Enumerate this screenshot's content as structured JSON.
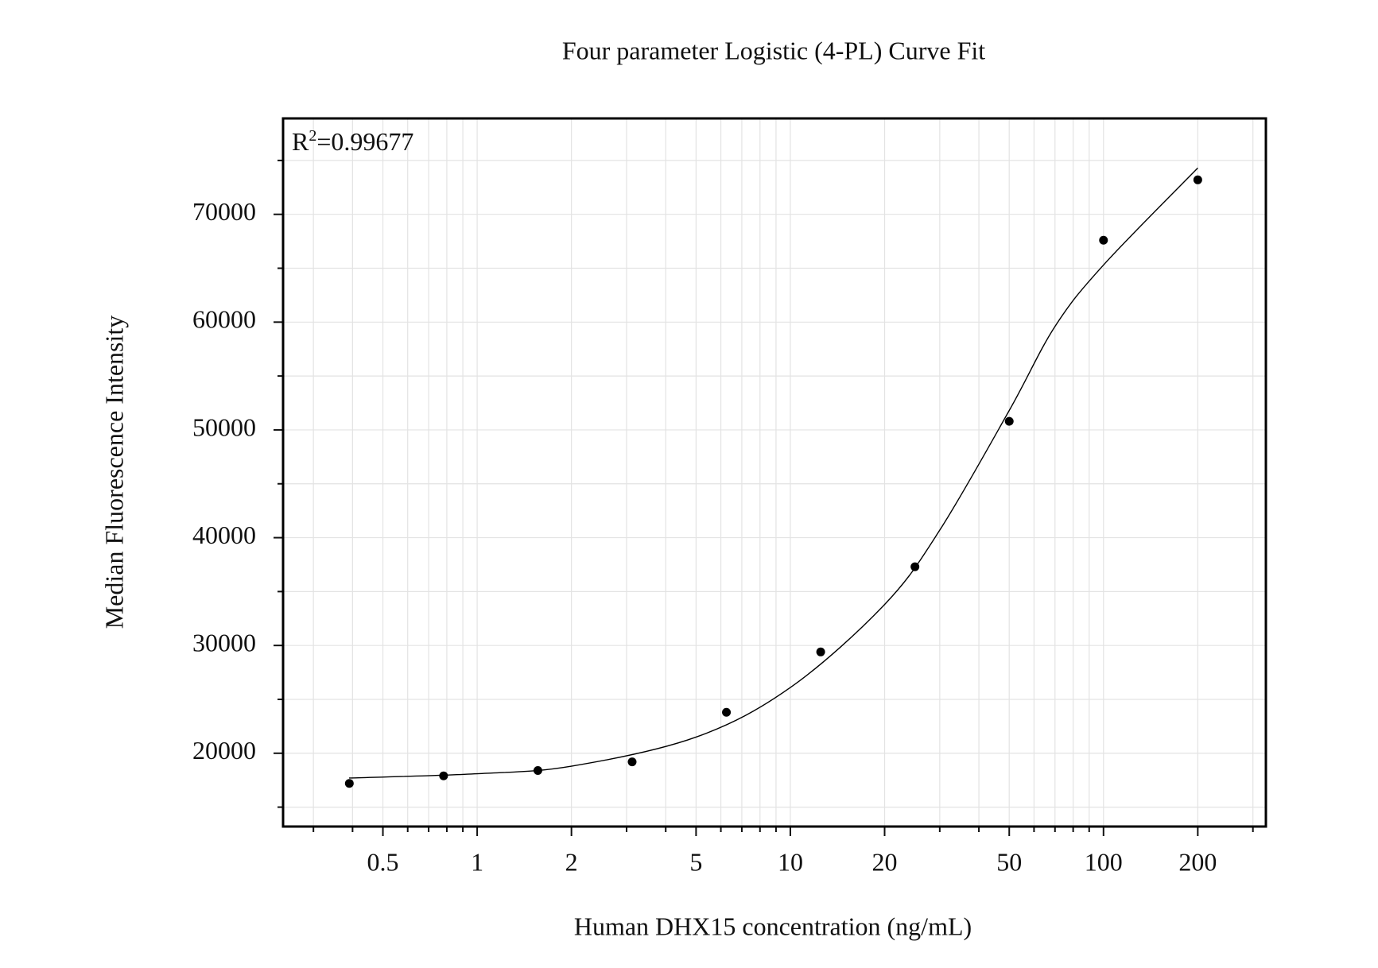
{
  "chart_data": {
    "type": "scatter",
    "title": "Four parameter Logistic (4-PL) Curve Fit",
    "x_label": "Human DHX15 concentration (ng/mL)",
    "y_label": "Median Fluorescence Intensity",
    "annotation": [
      "R",
      "2",
      "=0.99677"
    ],
    "x_scale": "log",
    "grid": true,
    "xlim": [
      0.24,
      330
    ],
    "ylim": [
      13200,
      78900
    ],
    "xticks": [
      0.5,
      1,
      2,
      5,
      10,
      20,
      50,
      100,
      200
    ],
    "xminorticks": [
      0.3,
      0.4,
      0.6,
      0.7,
      0.8,
      0.9,
      3,
      4,
      6,
      7,
      8,
      9,
      30,
      40,
      60,
      70,
      80,
      90,
      300
    ],
    "yticks": [
      20000,
      30000,
      40000,
      50000,
      60000,
      70000
    ],
    "yminorticks": [
      15000,
      25000,
      35000,
      45000,
      55000,
      65000,
      75000
    ],
    "series": [
      {
        "type": "scatter",
        "color": "#000000",
        "x": [
          0.390625,
          0.78125,
          1.5625,
          3.125,
          6.25,
          12.5,
          25,
          50,
          100,
          200
        ],
        "values": [
          17200,
          17900,
          18400,
          19200,
          23800,
          29400,
          37300,
          50800,
          67600,
          73200
        ]
      },
      {
        "type": "line",
        "color": "#000000",
        "x": [
          0.39,
          1,
          2,
          5,
          10,
          20,
          30,
          50,
          70,
          100,
          200
        ],
        "values": [
          17700,
          18100,
          18800,
          21500,
          26100,
          33800,
          40700,
          51800,
          59600,
          65300,
          74300
        ]
      }
    ]
  }
}
